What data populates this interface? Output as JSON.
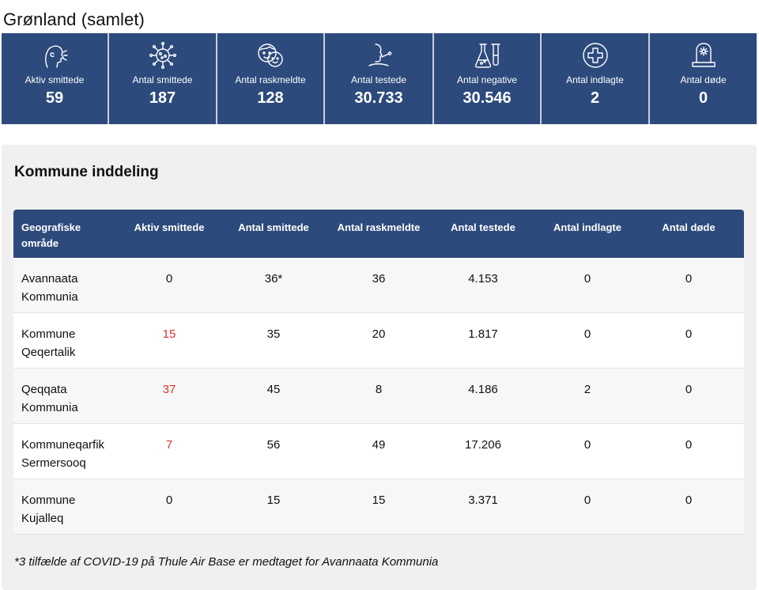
{
  "title": "Grønland (samlet)",
  "stats": [
    {
      "icon": "cough-person-icon",
      "label": "Aktiv smittede",
      "value": "59"
    },
    {
      "icon": "virus-icon",
      "label": "Antal smittede",
      "value": "187"
    },
    {
      "icon": "recovered-faces-icon",
      "label": "Antal raskmeldte",
      "value": "128"
    },
    {
      "icon": "test-swab-icon",
      "label": "Antal testede",
      "value": "30.733"
    },
    {
      "icon": "lab-flask-icon",
      "label": "Antal negative",
      "value": "30.546"
    },
    {
      "icon": "medical-cross-icon",
      "label": "Antal indlagte",
      "value": "2"
    },
    {
      "icon": "gravestone-icon",
      "label": "Antal døde",
      "value": "0"
    }
  ],
  "kommune": {
    "title": "Kommune inddeling",
    "headers": {
      "area_line1": "Geografiske",
      "area_line2": "område",
      "active": "Aktiv smittede",
      "infected": "Antal smittede",
      "recovered": "Antal raskmeldte",
      "tested": "Antal testede",
      "hospitalized": "Antal indlagte",
      "deaths": "Antal døde"
    },
    "rows": [
      {
        "area_line1": "Avannaata",
        "area_line2": "Kommunia",
        "active": "0",
        "infected": "36*",
        "recovered": "36",
        "tested": "4.153",
        "hospitalized": "0",
        "deaths": "0"
      },
      {
        "area_line1": "Kommune",
        "area_line2": "Qeqertalik",
        "active": "15",
        "infected": "35",
        "recovered": "20",
        "tested": "1.817",
        "hospitalized": "0",
        "deaths": "0"
      },
      {
        "area_line1": "Qeqqata",
        "area_line2": "Kommunia",
        "active": "37",
        "infected": "45",
        "recovered": "8",
        "tested": "4.186",
        "hospitalized": "2",
        "deaths": "0"
      },
      {
        "area_line1": "Kommuneqarfik",
        "area_line2": "Sermersooq",
        "active": "7",
        "infected": "56",
        "recovered": "49",
        "tested": "17.206",
        "hospitalized": "0",
        "deaths": "0"
      },
      {
        "area_line1": "Kommune",
        "area_line2": "Kujalleq",
        "active": "0",
        "infected": "15",
        "recovered": "15",
        "tested": "3.371",
        "hospitalized": "0",
        "deaths": "0"
      }
    ],
    "footnote": "*3 tilfælde af COVID-19 på Thule Air Base er medtaget for Avannaata Kommunia"
  },
  "colors": {
    "header_bg": "#2d4a7c",
    "active_highlight": "#e0322b",
    "panel_bg": "#f0f0f0"
  }
}
